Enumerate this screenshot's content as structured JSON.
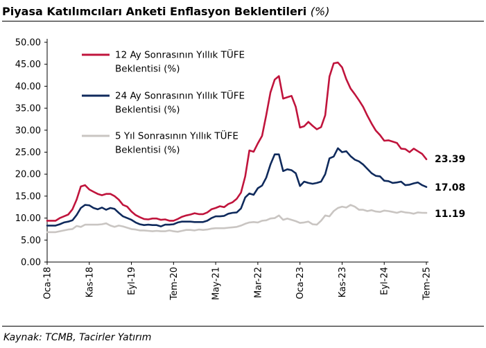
{
  "header": {
    "title": "Piyasa Katılımcıları Anketi Enflasyon Beklentileri",
    "unit": "(%)"
  },
  "footer": {
    "source": "Kaynak: TCMB, Tacirler Yatırım"
  },
  "colors": {
    "series_12m": "#c0143c",
    "series_24m": "#0f2a5c",
    "series_5y": "#c9c5c2",
    "axis": "#000000"
  },
  "chart_data": {
    "type": "line",
    "title": "Piyasa Katılımcıları Anketi Enflasyon Beklentileri (%)",
    "xlabel": "",
    "ylabel": "",
    "ylim": [
      0,
      50
    ],
    "yticks": [
      "0.00",
      "5.00",
      "10.00",
      "15.00",
      "20.00",
      "25.00",
      "30.00",
      "35.00",
      "40.00",
      "45.00",
      "50.00"
    ],
    "xticks": [
      "Oca-18",
      "Kas-18",
      "Eyl-19",
      "Tem-20",
      "May-21",
      "Mar-22",
      "Oca-23",
      "Kas-23",
      "Eyl-24",
      "Tem-25"
    ],
    "grid": false,
    "legend_position": "top-left",
    "x": [
      "Oca-18",
      "Şub-18",
      "Mar-18",
      "Nis-18",
      "May-18",
      "Haz-18",
      "Tem-18",
      "Ağu-18",
      "Eyl-18",
      "Eki-18",
      "Kas-18",
      "Ara-18",
      "Oca-19",
      "Şub-19",
      "Mar-19",
      "Nis-19",
      "May-19",
      "Haz-19",
      "Tem-19",
      "Ağu-19",
      "Eyl-19",
      "Eki-19",
      "Kas-19",
      "Ara-19",
      "Oca-20",
      "Şub-20",
      "Mar-20",
      "Nis-20",
      "May-20",
      "Haz-20",
      "Tem-20",
      "Ağu-20",
      "Eyl-20",
      "Eki-20",
      "Kas-20",
      "Ara-20",
      "Oca-21",
      "Şub-21",
      "Mar-21",
      "Nis-21",
      "May-21",
      "Haz-21",
      "Tem-21",
      "Ağu-21",
      "Eyl-21",
      "Eki-21",
      "Kas-21",
      "Ara-21",
      "Oca-22",
      "Şub-22",
      "Mar-22",
      "Nis-22",
      "May-22",
      "Haz-22",
      "Tem-22",
      "Ağu-22",
      "Eyl-22",
      "Eki-22",
      "Kas-22",
      "Ara-22",
      "Oca-23",
      "Şub-23",
      "Mar-23",
      "Nis-23",
      "May-23",
      "Haz-23",
      "Tem-23",
      "Ağu-23",
      "Eyl-23",
      "Eki-23",
      "Kas-23",
      "Ara-23",
      "Oca-24",
      "Şub-24",
      "Mar-24",
      "Nis-24",
      "May-24",
      "Haz-24",
      "Tem-24",
      "Ağu-24",
      "Eyl-24",
      "Eki-24",
      "Kas-24",
      "Ara-24",
      "Oca-25",
      "Şub-25",
      "Mar-25",
      "Nis-25",
      "May-25",
      "Haz-25",
      "Tem-25"
    ],
    "series": [
      {
        "name": "12 Ay Sonrasının Yıllık TÜFE Beklentisi (%)",
        "color": "#c0143c",
        "end_label": "23.39",
        "values": [
          9.4,
          9.4,
          9.4,
          10.0,
          10.4,
          10.8,
          12.0,
          14.2,
          17.2,
          17.5,
          16.5,
          16.0,
          15.5,
          15.2,
          15.5,
          15.5,
          15.0,
          14.2,
          13.0,
          12.6,
          11.5,
          10.7,
          10.2,
          9.8,
          9.7,
          9.9,
          9.9,
          9.6,
          9.7,
          9.4,
          9.4,
          9.8,
          10.3,
          10.6,
          10.8,
          11.1,
          10.9,
          10.9,
          11.3,
          12.0,
          12.3,
          12.7,
          12.5,
          13.2,
          13.6,
          14.4,
          15.8,
          19.5,
          25.4,
          25.1,
          27.0,
          28.7,
          33.4,
          38.6,
          41.5,
          42.3,
          37.2,
          37.5,
          37.8,
          35.3,
          30.6,
          30.9,
          31.9,
          31.0,
          30.2,
          30.7,
          33.4,
          42.2,
          45.2,
          45.4,
          44.3,
          41.6,
          39.5,
          38.2,
          36.8,
          35.3,
          33.3,
          31.5,
          29.9,
          28.9,
          27.6,
          27.7,
          27.4,
          27.1,
          25.8,
          25.7,
          25.0,
          25.8,
          25.2,
          24.6,
          23.39
        ]
      },
      {
        "name": "24 Ay Sonrasının Yıllık TÜFE Beklentisi (%)",
        "color": "#0f2a5c",
        "end_label": "17.08",
        "values": [
          8.3,
          8.3,
          8.3,
          8.6,
          9.0,
          9.2,
          9.5,
          10.7,
          12.3,
          13.0,
          12.9,
          12.3,
          12.0,
          12.4,
          11.9,
          12.3,
          12.1,
          11.2,
          10.4,
          10.0,
          9.6,
          9.0,
          8.6,
          8.4,
          8.5,
          8.4,
          8.4,
          8.1,
          8.5,
          8.5,
          8.6,
          9.0,
          9.2,
          9.2,
          9.2,
          9.1,
          9.1,
          9.1,
          9.4,
          10.0,
          10.4,
          10.4,
          10.5,
          11.0,
          11.2,
          11.3,
          12.2,
          14.7,
          15.6,
          15.3,
          16.8,
          17.4,
          19.2,
          22.2,
          24.5,
          24.5,
          20.7,
          21.1,
          20.9,
          20.2,
          17.3,
          18.3,
          18.0,
          17.8,
          18.0,
          18.3,
          20.0,
          23.6,
          24.0,
          25.9,
          25.0,
          25.2,
          24.1,
          23.3,
          22.9,
          22.2,
          21.2,
          20.2,
          19.6,
          19.5,
          18.5,
          18.4,
          18.0,
          18.1,
          18.3,
          17.5,
          17.6,
          17.9,
          18.1,
          17.5,
          17.08
        ]
      },
      {
        "name": "5 Yıl Sonrasının Yıllık TÜFE Beklentisi (%)",
        "color": "#c9c5c2",
        "end_label": "11.19",
        "values": [
          6.8,
          6.8,
          6.8,
          7.0,
          7.2,
          7.4,
          7.5,
          8.2,
          8.0,
          8.5,
          8.5,
          8.5,
          8.5,
          8.6,
          8.8,
          8.3,
          8.0,
          8.3,
          8.1,
          7.8,
          7.5,
          7.4,
          7.2,
          7.2,
          7.1,
          7.0,
          7.1,
          7.0,
          7.0,
          7.2,
          7.0,
          6.9,
          7.1,
          7.3,
          7.3,
          7.2,
          7.4,
          7.3,
          7.4,
          7.6,
          7.7,
          7.7,
          7.7,
          7.8,
          7.9,
          8.0,
          8.3,
          8.7,
          9.0,
          9.1,
          9.0,
          9.4,
          9.5,
          9.9,
          10.0,
          10.6,
          9.6,
          9.9,
          9.6,
          9.3,
          8.9,
          9.0,
          9.2,
          8.6,
          8.5,
          9.4,
          10.6,
          10.4,
          11.6,
          12.3,
          12.6,
          12.4,
          13.0,
          12.6,
          11.9,
          11.9,
          11.6,
          11.8,
          11.5,
          11.4,
          11.7,
          11.6,
          11.4,
          11.2,
          11.5,
          11.3,
          11.2,
          11.0,
          11.3,
          11.2,
          11.19
        ]
      }
    ]
  }
}
